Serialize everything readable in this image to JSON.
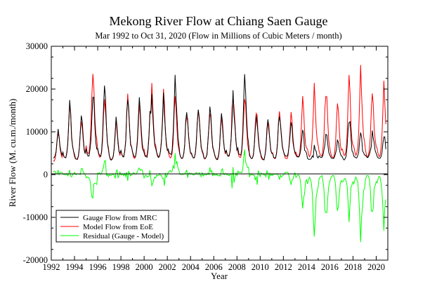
{
  "chart_data": {
    "type": "line",
    "title": "Mekong River Flow at Chiang Saen Gauge",
    "subtitle": "Mar 1992 to Oct 31, 2020 (Flow in Millions of Cubic Meters / month)",
    "xlabel": "Year",
    "ylabel": "River Flow (M. cu.m./month)",
    "xlim": [
      1992,
      2021
    ],
    "ylim": [
      -20000,
      30000
    ],
    "x_ticks": [
      "1992",
      "1994",
      "1996",
      "1998",
      "2000",
      "2002",
      "2004",
      "2006",
      "2008",
      "2010",
      "2012",
      "2014",
      "2016",
      "2018",
      "2020"
    ],
    "y_ticks": [
      "-20000",
      "-10000",
      "0",
      "10000",
      "20000",
      "30000"
    ],
    "legend_position": "bottom-left",
    "grid": false,
    "x_start": 1992.17,
    "x_step": 0.0833,
    "annual_peaks": {
      "years": [
        1992,
        1993,
        1994,
        1995,
        1996,
        1997,
        1998,
        1999,
        2000,
        2001,
        2002,
        2003,
        2004,
        2005,
        2006,
        2007,
        2008,
        2009,
        2010,
        2011,
        2012,
        2013,
        2014,
        2015,
        2016,
        2017,
        2018,
        2019,
        2020
      ],
      "gauge": [
        9500,
        16000,
        13500,
        19500,
        20000,
        13000,
        18000,
        17500,
        18000,
        18000,
        22000,
        15000,
        15500,
        15500,
        13500,
        18000,
        22500,
        15000,
        13000,
        15000,
        12000,
        10500,
        6000,
        9500,
        8000,
        13500,
        9000,
        10000,
        8500
      ],
      "model": [
        10000,
        16200,
        13000,
        25500,
        18500,
        12500,
        18500,
        16500,
        20000,
        18500,
        17500,
        14500,
        16000,
        15500,
        14000,
        19500,
        18000,
        15500,
        13000,
        15500,
        14500,
        18500,
        20000,
        20000,
        16500,
        22000,
        23500,
        20000,
        21000
      ]
    },
    "series": [
      {
        "name": "Gauge Flow from MRC",
        "color": "#000000"
      },
      {
        "name": "Model Flow from EoE",
        "color": "#ff0000"
      },
      {
        "name": "Residual (Gauge - Model)",
        "color": "#00ff00"
      }
    ]
  }
}
